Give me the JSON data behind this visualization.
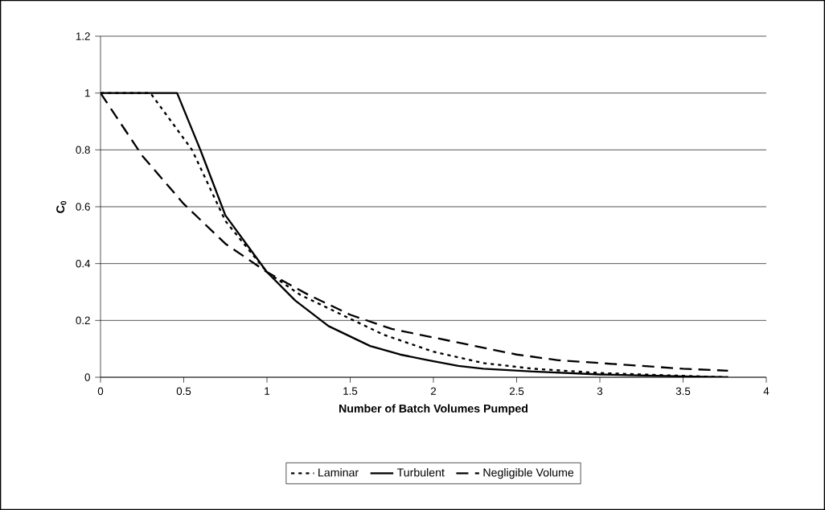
{
  "chart_data": {
    "type": "line",
    "xlabel": "Number of Batch Volumes Pumped",
    "ylabel": "C$_{0}$",
    "xlim": [
      0,
      4
    ],
    "xticks": [
      0,
      0.5,
      1,
      1.5,
      2,
      2.5,
      3,
      3.5,
      4
    ],
    "ylim": [
      0,
      1.2
    ],
    "yticks": [
      0,
      0.2,
      0.4,
      0.6,
      0.8,
      1,
      1.2
    ],
    "grid": "y",
    "legend": "bottom",
    "marker": "none",
    "series": [
      {
        "name": "Laminar",
        "color": "#000000",
        "line_style": "dotted",
        "x": [
          0,
          0.3,
          0.55,
          0.75,
          1,
          1.2,
          1.45,
          1.7,
          2,
          2.3,
          2.6,
          3,
          3.5,
          3.77
        ],
        "values": [
          1,
          1,
          0.8,
          0.55,
          0.37,
          0.29,
          0.22,
          0.15,
          0.09,
          0.05,
          0.03,
          0.015,
          0.005,
          0
        ]
      },
      {
        "name": "Turbulent",
        "color": "#000000",
        "line_style": "solid",
        "x": [
          0,
          0.46,
          0.6,
          0.75,
          1,
          1.17,
          1.37,
          1.62,
          1.8,
          1.97,
          2.15,
          2.3,
          2.6,
          3,
          3.5,
          3.77
        ],
        "values": [
          1,
          1,
          0.8,
          0.57,
          0.37,
          0.27,
          0.18,
          0.11,
          0.08,
          0.06,
          0.04,
          0.03,
          0.02,
          0.01,
          0.003,
          0
        ]
      },
      {
        "name": "Negligible Volume",
        "color": "#000000",
        "line_style": "dashed",
        "x": [
          0,
          0.25,
          0.5,
          0.75,
          1,
          1.25,
          1.5,
          1.75,
          2,
          2.25,
          2.5,
          2.75,
          3,
          3.25,
          3.5,
          3.77
        ],
        "values": [
          1,
          0.78,
          0.61,
          0.47,
          0.37,
          0.29,
          0.22,
          0.17,
          0.14,
          0.11,
          0.08,
          0.06,
          0.05,
          0.04,
          0.03,
          0.023
        ]
      }
    ]
  }
}
